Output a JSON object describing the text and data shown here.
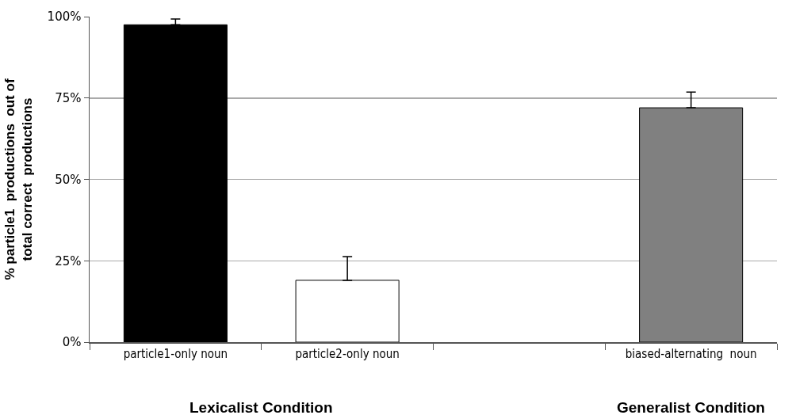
{
  "chart_data": {
    "type": "bar",
    "ylabel": "% particle1  productions  out of\ntotal correct  productions",
    "categories": [
      "particle1-only noun",
      "particle2-only noun",
      null,
      "biased-alternating  noun"
    ],
    "values": [
      97.5,
      19,
      null,
      72
    ],
    "colors": [
      "#000000",
      "#ffffff",
      "#808080",
      "#808080"
    ],
    "errors": [
      [
        97.5,
        99.3
      ],
      [
        19,
        26.3
      ],
      null,
      [
        72,
        76.8
      ]
    ],
    "ylim": [
      0,
      100
    ],
    "yticks": [
      {
        "value": 0,
        "label": "0%"
      },
      {
        "value": 25,
        "label": "25%"
      },
      {
        "value": 50,
        "label": "50%"
      },
      {
        "value": 75,
        "label": "75%"
      },
      {
        "value": 100,
        "label": "100%"
      }
    ],
    "grid": "y",
    "annotations": [
      "Lexicalist Condition",
      "Generalist Condition"
    ]
  }
}
